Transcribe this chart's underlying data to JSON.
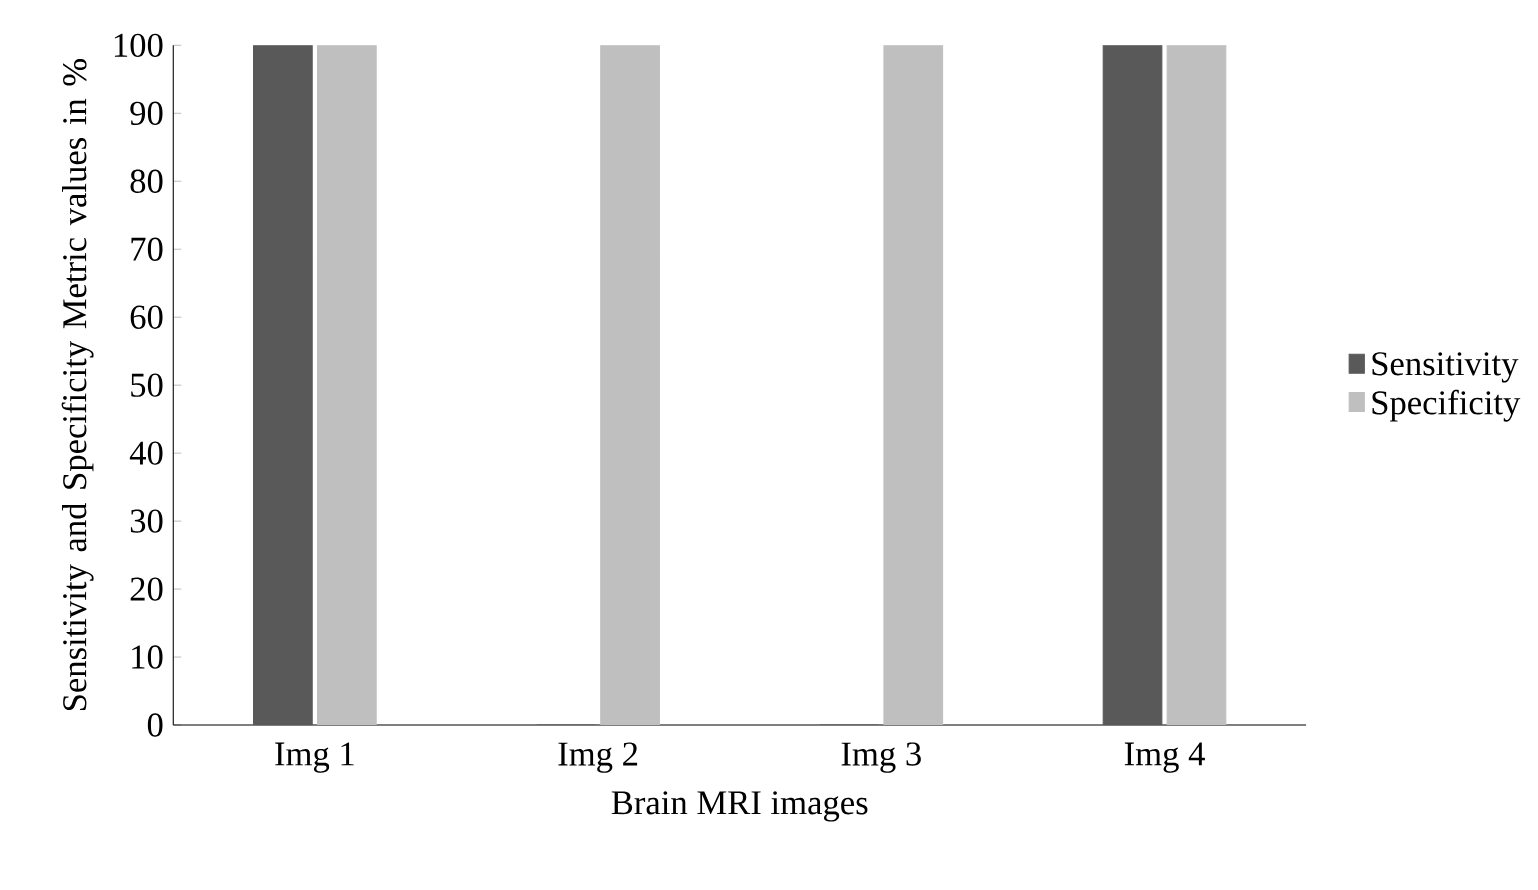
{
  "chart_data": {
    "type": "bar",
    "xlabel": "Brain MRI images",
    "ylabel": "Sensitivity and Specificity Metric values in %",
    "categories": [
      "Img 1",
      "Img 2",
      "Img 3",
      "Img 4"
    ],
    "series": [
      {
        "name": "Sensitivity",
        "color": "#595959",
        "values": [
          100,
          0,
          0,
          100
        ]
      },
      {
        "name": "Specificity",
        "color": "#bfbfbf",
        "values": [
          100,
          100,
          100,
          100
        ]
      }
    ],
    "ylim": [
      0,
      100
    ],
    "yticks": [
      0,
      10,
      20,
      30,
      40,
      50,
      60,
      70,
      80,
      90,
      100
    ],
    "legend": "right"
  }
}
